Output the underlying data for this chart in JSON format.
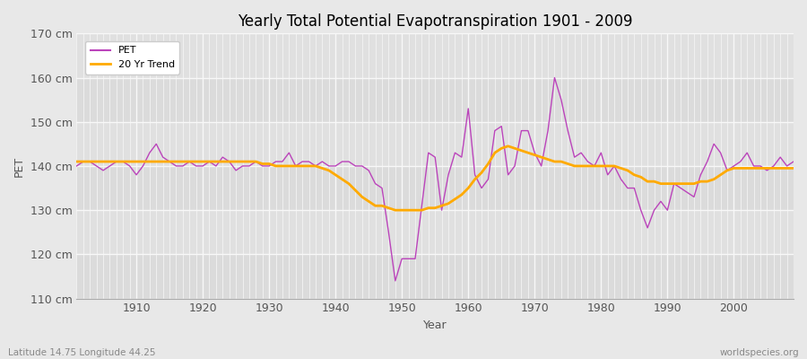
{
  "title": "Yearly Total Potential Evapotranspiration 1901 - 2009",
  "xlabel": "Year",
  "ylabel": "PET",
  "lat_lon_label": "Latitude 14.75 Longitude 44.25",
  "source_label": "worldspecies.org",
  "ylim": [
    110,
    170
  ],
  "yticks": [
    110,
    120,
    130,
    140,
    150,
    160,
    170
  ],
  "ytick_labels": [
    "110 cm",
    "120 cm",
    "130 cm",
    "140 cm",
    "150 cm",
    "160 cm",
    "170 cm"
  ],
  "xlim": [
    1901,
    2009
  ],
  "xticks": [
    1910,
    1920,
    1930,
    1940,
    1950,
    1960,
    1970,
    1980,
    1990,
    2000
  ],
  "pet_color": "#bb44bb",
  "trend_color": "#ffaa00",
  "fig_bg_color": "#e8e8e8",
  "plot_bg_color": "#e0e0e0",
  "grid_color": "#f8f8f8",
  "years": [
    1901,
    1902,
    1903,
    1904,
    1905,
    1906,
    1907,
    1908,
    1909,
    1910,
    1911,
    1912,
    1913,
    1914,
    1915,
    1916,
    1917,
    1918,
    1919,
    1920,
    1921,
    1922,
    1923,
    1924,
    1925,
    1926,
    1927,
    1928,
    1929,
    1930,
    1931,
    1932,
    1933,
    1934,
    1935,
    1936,
    1937,
    1938,
    1939,
    1940,
    1941,
    1942,
    1943,
    1944,
    1945,
    1946,
    1947,
    1948,
    1949,
    1950,
    1951,
    1952,
    1953,
    1954,
    1955,
    1956,
    1957,
    1958,
    1959,
    1960,
    1961,
    1962,
    1963,
    1964,
    1965,
    1966,
    1967,
    1968,
    1969,
    1970,
    1971,
    1972,
    1973,
    1974,
    1975,
    1976,
    1977,
    1978,
    1979,
    1980,
    1981,
    1982,
    1983,
    1984,
    1985,
    1986,
    1987,
    1988,
    1989,
    1990,
    1991,
    1992,
    1993,
    1994,
    1995,
    1996,
    1997,
    1998,
    1999,
    2000,
    2001,
    2002,
    2003,
    2004,
    2005,
    2006,
    2007,
    2008,
    2009
  ],
  "pet_values": [
    140,
    141,
    141,
    140,
    139,
    140,
    141,
    141,
    140,
    138,
    140,
    143,
    145,
    142,
    141,
    140,
    140,
    141,
    140,
    140,
    141,
    140,
    142,
    141,
    139,
    140,
    140,
    141,
    140,
    140,
    141,
    141,
    143,
    140,
    141,
    141,
    140,
    141,
    140,
    140,
    141,
    141,
    140,
    140,
    139,
    136,
    135,
    125,
    114,
    119,
    119,
    119,
    131,
    143,
    142,
    130,
    138,
    143,
    142,
    153,
    138,
    135,
    137,
    148,
    149,
    138,
    140,
    148,
    148,
    143,
    140,
    148,
    160,
    155,
    148,
    142,
    143,
    141,
    140,
    143,
    138,
    140,
    137,
    135,
    135,
    130,
    126,
    130,
    132,
    130,
    136,
    135,
    134,
    133,
    138,
    141,
    145,
    143,
    139,
    140,
    141,
    143,
    140,
    140,
    139,
    140,
    142,
    140,
    141
  ],
  "trend_values": [
    141.0,
    141.0,
    141.0,
    141.0,
    141.0,
    141.0,
    141.0,
    141.0,
    141.0,
    141.0,
    141.0,
    141.0,
    141.0,
    141.0,
    141.0,
    141.0,
    141.0,
    141.0,
    141.0,
    141.0,
    141.0,
    141.0,
    141.0,
    141.0,
    141.0,
    141.0,
    141.0,
    141.0,
    140.5,
    140.5,
    140.0,
    140.0,
    140.0,
    140.0,
    140.0,
    140.0,
    140.0,
    139.5,
    139.0,
    138.0,
    137.0,
    136.0,
    134.5,
    133.0,
    132.0,
    131.0,
    131.0,
    130.5,
    130.0,
    130.0,
    130.0,
    130.0,
    130.0,
    130.5,
    130.5,
    131.0,
    131.5,
    132.5,
    133.5,
    135.0,
    137.0,
    138.5,
    140.5,
    143.0,
    144.0,
    144.5,
    144.0,
    143.5,
    143.0,
    142.5,
    142.0,
    141.5,
    141.0,
    141.0,
    140.5,
    140.0,
    140.0,
    140.0,
    140.0,
    140.0,
    140.0,
    140.0,
    139.5,
    139.0,
    138.0,
    137.5,
    136.5,
    136.5,
    136.0,
    136.0,
    136.0,
    136.0,
    136.0,
    136.0,
    136.5,
    136.5,
    137.0,
    138.0,
    139.0,
    139.5,
    139.5,
    139.5,
    139.5,
    139.5,
    139.5,
    139.5,
    139.5,
    139.5,
    139.5
  ]
}
